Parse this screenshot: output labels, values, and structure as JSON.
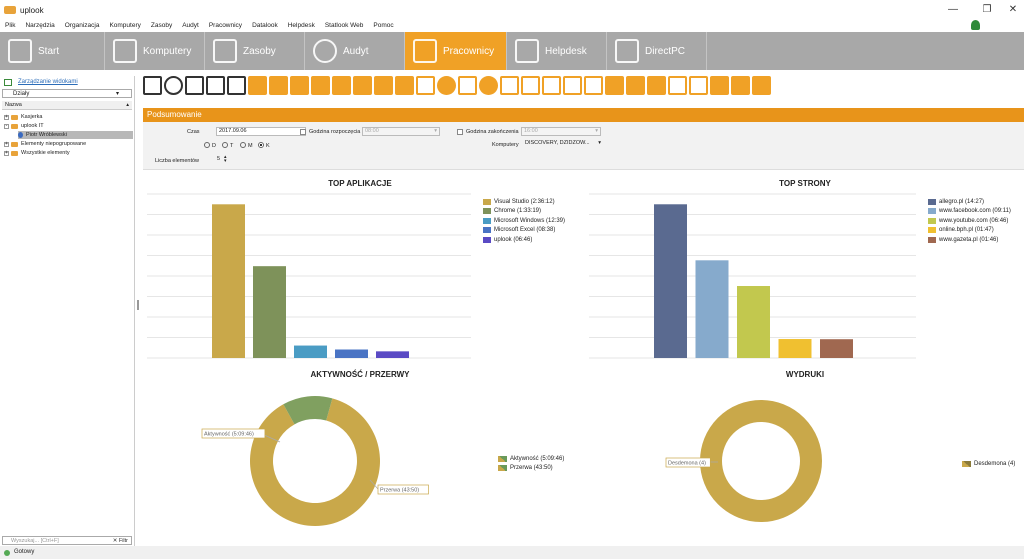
{
  "window": {
    "title": "uplook",
    "minimize": "—",
    "maximize": "❐",
    "close": "✕"
  },
  "menu": [
    "Plik",
    "Narzędzia",
    "Organizacja",
    "Komputery",
    "Zasoby",
    "Audyt",
    "Pracownicy",
    "Datalook",
    "Helpdesk",
    "Statlook Web",
    "Pomoc"
  ],
  "nav": {
    "tabs": [
      "Start",
      "Komputery",
      "Zasoby",
      "Audyt",
      "Pracownicy",
      "Helpdesk",
      "DirectPC"
    ],
    "active": "Pracownicy"
  },
  "sidebar": {
    "link": "Zarządzanie widokami",
    "combo": "Działy",
    "header": "Nazwa",
    "tree": [
      "Kasjerka",
      "uplook IT",
      "Piotr Wróblewski",
      "Elementy niepogrupowane",
      "Wszystkie elementy"
    ],
    "search_placeholder": "Wyszukaj... [Ctrl+F]",
    "filter": "Filtr"
  },
  "status": "Gotowy",
  "panel": {
    "title": "Podsumowanie",
    "czas_label": "Czas",
    "czas_value": "2017.09.06",
    "start_label": "Godzina rozpoczęcia",
    "start_value": "08:00",
    "end_label": "Godzina zakończenia",
    "end_value": "16:00",
    "radio": [
      "D",
      "T",
      "M",
      "K"
    ],
    "radio_selected": "K",
    "komputery_label": "Komputery",
    "komputery_value": "DISCOVERY, DZIDZOW...",
    "elements_label": "Liczba elementów",
    "elements_value": "5"
  },
  "chart_data": [
    {
      "type": "bar",
      "title": "TOP APLIKACJE",
      "categories": [
        "Visual Studio",
        "Chrome",
        "Microsoft Windows",
        "Microsoft Excel",
        "uplook"
      ],
      "values": [
        9372,
        5599,
        759,
        518,
        406
      ],
      "legend": [
        "Visual Studio (2:36:12)",
        "Chrome (1:33:19)",
        "Microsoft Windows (12:39)",
        "Microsoft Excel (08:38)",
        "uplook (06:46)"
      ],
      "colors": [
        "#c9a84a",
        "#7e925a",
        "#4a9cc4",
        "#4a74c4",
        "#5a4ac4"
      ],
      "ylim": [
        0,
        10000
      ]
    },
    {
      "type": "bar",
      "title": "TOP STRONY",
      "categories": [
        "allegro.pl",
        "www.facebook.com",
        "www.youtube.com",
        "online.bph.pl",
        "www.gazeta.pl"
      ],
      "values": [
        867,
        551,
        406,
        107,
        106
      ],
      "legend": [
        "allegro.pl (14:27)",
        "www.facebook.com (09:11)",
        "www.youtube.com (06:46)",
        "online.bph.pl (01:47)",
        "www.gazeta.pl (01:46)"
      ],
      "colors": [
        "#5a6a90",
        "#86aacc",
        "#c2c84e",
        "#f0c030",
        "#a06850"
      ],
      "ylim": [
        0,
        925
      ]
    },
    {
      "type": "pie",
      "title": "AKTYWNOŚĆ / PRZERWY",
      "categories": [
        "Aktywność",
        "Przerwa"
      ],
      "values": [
        18586,
        2630
      ],
      "labels": [
        "Aktywność (5:09:46)",
        "Przerwa (43:50)"
      ],
      "legend": [
        "Aktywność (5:09:46)",
        "Przerwa (43:50)"
      ],
      "colors": [
        "#c9a84a",
        "#80a060"
      ]
    },
    {
      "type": "pie",
      "title": "WYDRUKI",
      "categories": [
        "Desdemona"
      ],
      "values": [
        4
      ],
      "labels": [
        "Desdemona (4)"
      ],
      "legend": [
        "Desdemona (4)"
      ],
      "colors": [
        "#c9a84a"
      ]
    }
  ]
}
